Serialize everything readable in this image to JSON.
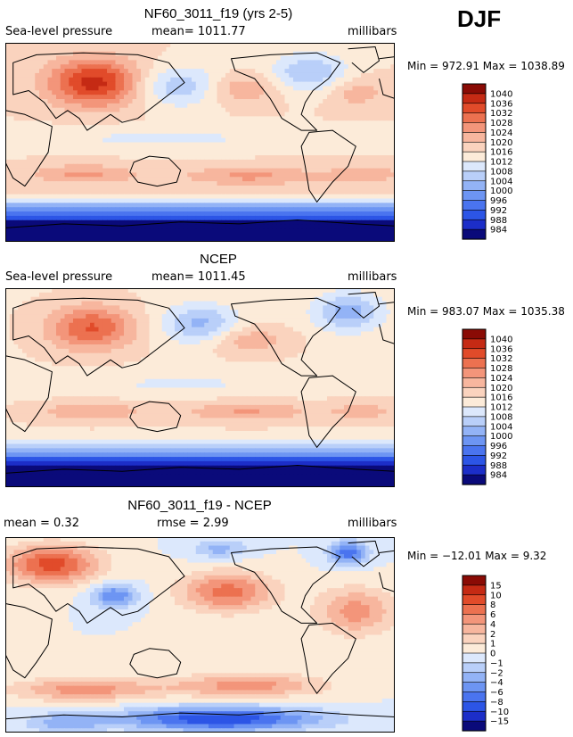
{
  "season": "DJF",
  "colors": {
    "abs_scale": [
      "#0a0a7a",
      "#1c2ec8",
      "#2c55e6",
      "#4a74ef",
      "#6d95f3",
      "#93b3f6",
      "#b9cff9",
      "#dce8fc",
      "#fcebd9",
      "#fad3be",
      "#f7b69e",
      "#f3957a",
      "#ec7150",
      "#e14b2a",
      "#c52a14",
      "#8a0b05"
    ],
    "diff_scale": [
      "#0a0a7a",
      "#1c2ec8",
      "#2c55e6",
      "#4a74ef",
      "#6d95f3",
      "#93b3f6",
      "#b9cff9",
      "#dce8fc",
      "#fcebd9",
      "#fad3be",
      "#f7b69e",
      "#f3957a",
      "#ec7150",
      "#e14b2a",
      "#c52a14",
      "#8a0b05"
    ]
  },
  "chart_data": [
    {
      "type": "heatmap",
      "title": "NF60_3011_f19 (yrs 2-5)",
      "variable": "Sea-level pressure",
      "stat_text": "mean=  1011.77",
      "units": "millibars",
      "minmax_text": "Min = 972.91  Max = 1038.89",
      "mean": 1011.77,
      "min": 972.91,
      "max": 1038.89,
      "levels": [
        "1040",
        "1036",
        "1032",
        "1028",
        "1024",
        "1020",
        "1016",
        "1012",
        "1008",
        "1004",
        "1000",
        "996",
        "992",
        "988",
        "984"
      ],
      "field": "model"
    },
    {
      "type": "heatmap",
      "title": "NCEP",
      "variable": "Sea-level pressure",
      "stat_text": "mean=  1011.45",
      "units": "millibars",
      "minmax_text": "Min = 983.07  Max = 1035.38",
      "mean": 1011.45,
      "min": 983.07,
      "max": 1035.38,
      "levels": [
        "1040",
        "1036",
        "1032",
        "1028",
        "1024",
        "1020",
        "1016",
        "1012",
        "1008",
        "1004",
        "1000",
        "996",
        "992",
        "988",
        "984"
      ],
      "field": "obs"
    },
    {
      "type": "heatmap",
      "title": "NF60_3011_f19 - NCEP",
      "variable": "mean =     0.32",
      "stat_text": "rmse =     2.99",
      "units": "millibars",
      "minmax_text": "Min = −12.01  Max =     9.32",
      "mean": 0.32,
      "rmse": 2.99,
      "min": -12.01,
      "max": 9.32,
      "levels": [
        "15",
        "10",
        "8",
        "6",
        "4",
        "2",
        "1",
        "0",
        "−1",
        "−2",
        "−4",
        "−6",
        "−8",
        "−10",
        "−15"
      ],
      "field": "diff"
    }
  ]
}
